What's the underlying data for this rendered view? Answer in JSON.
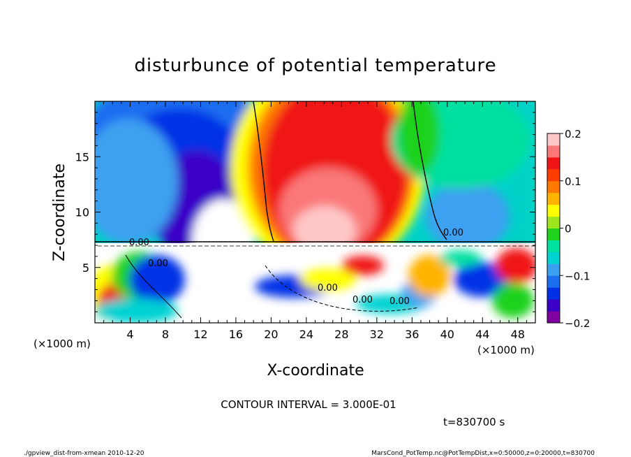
{
  "chart_data": {
    "type": "heatmap",
    "title": "disturbunce of potential temperature",
    "xlabel": "X-coordinate",
    "ylabel": "Z-coordinate",
    "x_unit_left": "(×1000 m)",
    "x_unit_right": "(×1000 m)",
    "xlim": [
      0,
      50
    ],
    "ylim": [
      0,
      20
    ],
    "x_ticks": [
      4,
      8,
      12,
      16,
      20,
      24,
      28,
      32,
      36,
      40,
      44,
      48
    ],
    "y_ticks": [
      5,
      10,
      15
    ],
    "colorbar": {
      "ticks": [
        {
          "value": 0.2,
          "label": "0.2"
        },
        {
          "value": 0.1,
          "label": "0.1"
        },
        {
          "value": 0,
          "label": "0"
        },
        {
          "value": -0.1,
          "label": "−0.1"
        },
        {
          "value": -0.2,
          "label": "−0.2"
        }
      ],
      "range": [
        -0.2,
        0.2
      ]
    },
    "contour_labels": [
      "0.00",
      "0.00",
      "0.00",
      "0.00",
      "0.00",
      "0.00"
    ],
    "contour_interval_text": "CONTOUR INTERVAL = 3.000E-01",
    "time_text": "t=830700 s"
  },
  "footer": {
    "left": "./gpview_dist-from-xmean  2010-12-20",
    "right": "MarsCond_PotTemp.nc@PotTempDist,x=0:50000,z=0:20000,t=830700"
  },
  "colors": {
    "scale": [
      "#8000a0",
      "#3a00c8",
      "#0030e6",
      "#1e6ef0",
      "#3ca0f0",
      "#00d2d2",
      "#00e0a0",
      "#1ed21e",
      "#a0e61e",
      "#ffff00",
      "#ffb400",
      "#ff7800",
      "#ff3c00",
      "#f01414",
      "#fa7878",
      "#ffc8c8"
    ]
  }
}
